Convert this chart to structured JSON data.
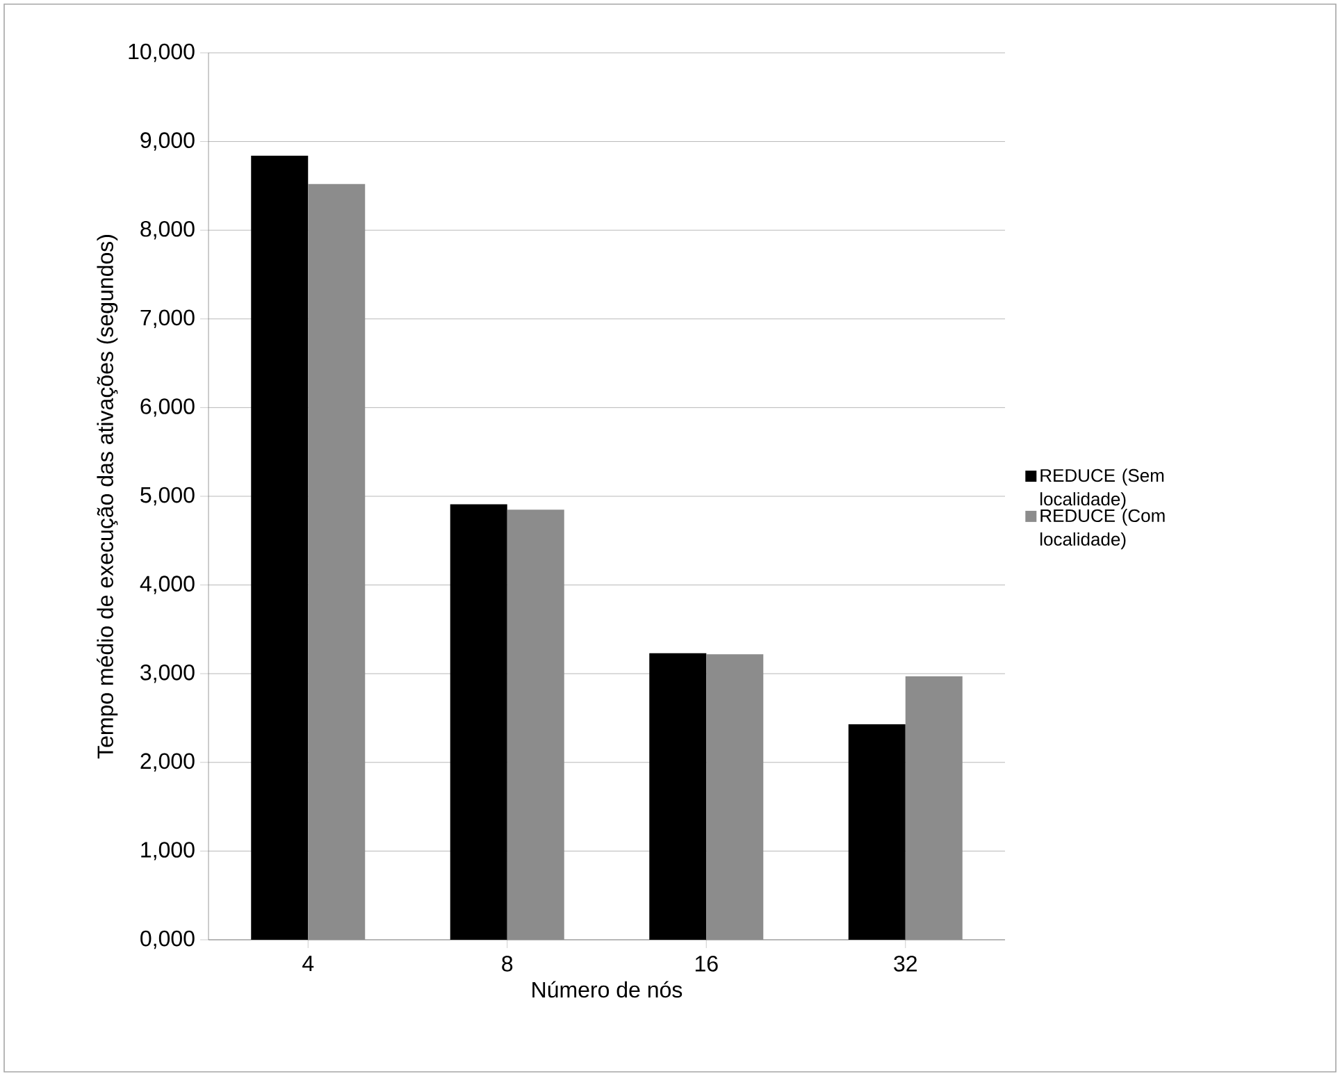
{
  "chart_data": {
    "type": "bar",
    "xlabel": "Número de nós",
    "ylabel": "Tempo médio de execução das ativações (segundos)",
    "categories": [
      "4",
      "8",
      "16",
      "32"
    ],
    "series": [
      {
        "name": "REDUCE (Sem localidade)",
        "color": "#000000",
        "values": [
          8840,
          4910,
          3230,
          2430
        ]
      },
      {
        "name": "REDUCE (Com localidade)",
        "color": "#8c8c8c",
        "values": [
          8520,
          4850,
          3220,
          2970
        ]
      }
    ],
    "ylim": [
      0,
      10000
    ],
    "yticks": [
      {
        "value": 0,
        "label": "0,000"
      },
      {
        "value": 1000,
        "label": "1,000"
      },
      {
        "value": 2000,
        "label": "2,000"
      },
      {
        "value": 3000,
        "label": "3,000"
      },
      {
        "value": 4000,
        "label": "4,000"
      },
      {
        "value": 5000,
        "label": "5,000"
      },
      {
        "value": 6000,
        "label": "6,000"
      },
      {
        "value": 7000,
        "label": "7,000"
      },
      {
        "value": 8000,
        "label": "8,000"
      },
      {
        "value": 9000,
        "label": "9,000"
      },
      {
        "value": 10000,
        "label": "10,000"
      }
    ],
    "grid": "y",
    "legend": "right"
  }
}
